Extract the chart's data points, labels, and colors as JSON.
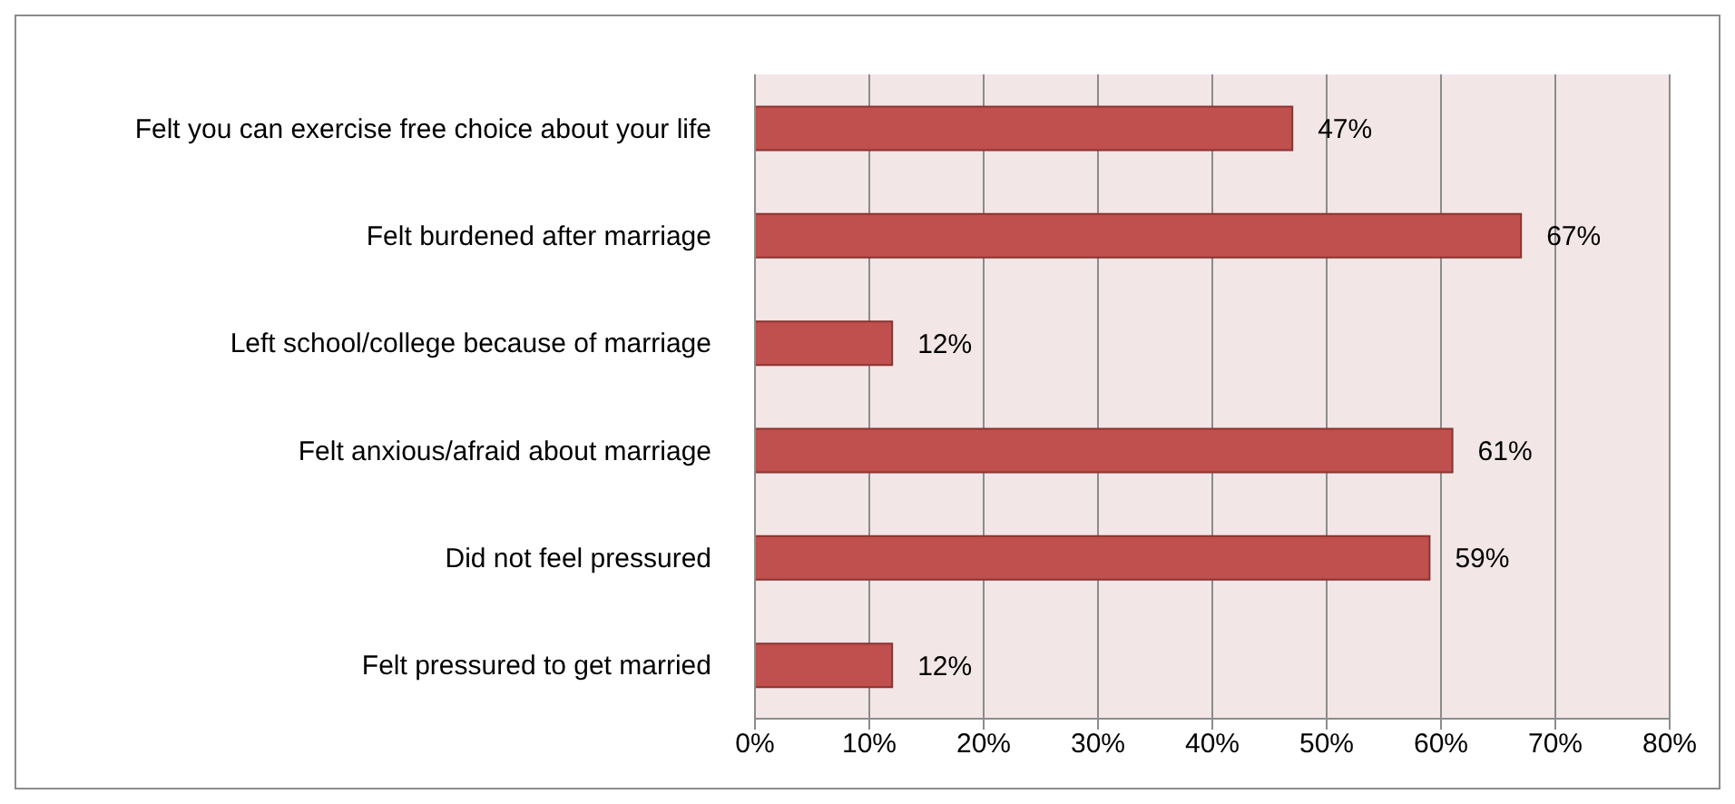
{
  "chart_data": {
    "type": "bar",
    "orientation": "horizontal",
    "categories": [
      "Felt you can exercise free choice about your life",
      "Felt burdened after marriage",
      "Left school/college because of marriage",
      "Felt anxious/afraid about marriage",
      "Did not feel pressured",
      "Felt pressured to get married"
    ],
    "values": [
      47,
      67,
      12,
      61,
      59,
      12
    ],
    "value_labels": [
      "47%",
      "67%",
      "12%",
      "61%",
      "59%",
      "12%"
    ],
    "color": "#c0504d",
    "xlim": [
      0,
      80
    ],
    "xticks": [
      {
        "value": 0,
        "label": "0%"
      },
      {
        "value": 10,
        "label": "10%"
      },
      {
        "value": 20,
        "label": "20%"
      },
      {
        "value": 30,
        "label": "30%"
      },
      {
        "value": 40,
        "label": "40%"
      },
      {
        "value": 50,
        "label": "50%"
      },
      {
        "value": 60,
        "label": "60%"
      },
      {
        "value": 70,
        "label": "70%"
      },
      {
        "value": 80,
        "label": "80%"
      }
    ],
    "grid": "x",
    "legend": false
  }
}
